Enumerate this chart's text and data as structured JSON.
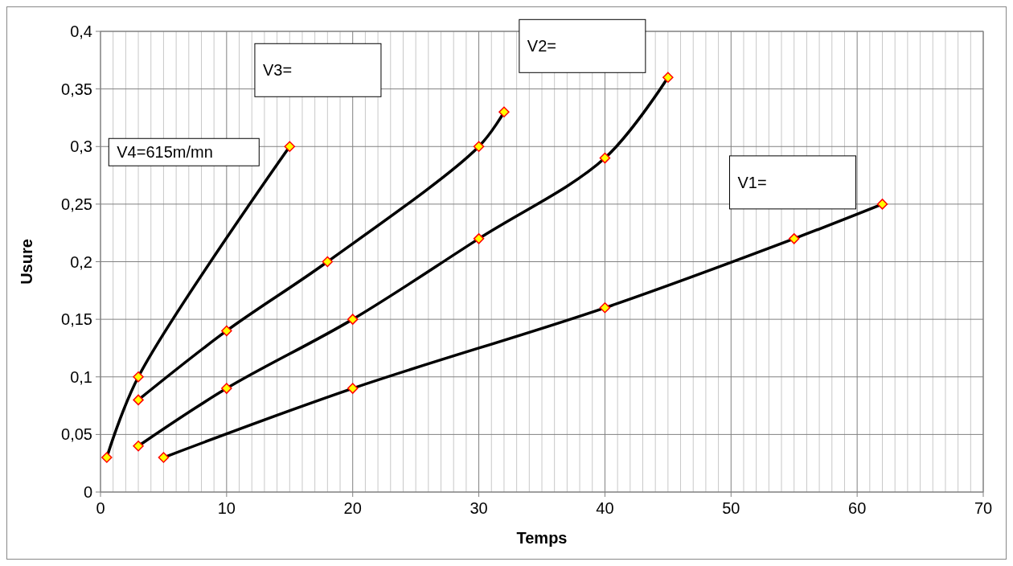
{
  "chart_data": {
    "type": "line",
    "xlabel": "Temps",
    "ylabel": "Usure",
    "xlim": [
      0,
      70
    ],
    "ylim": [
      0,
      0.4
    ],
    "xticks": [
      0,
      {
        "value": 1,
        "label": null
      },
      {
        "value": 2,
        "label": null
      },
      {
        "value": 3,
        "label": null
      },
      {
        "value": 4,
        "label": null
      },
      {
        "value": 5,
        "label": null
      },
      {
        "value": 6,
        "label": null
      },
      {
        "value": 7,
        "label": null
      },
      {
        "value": 8,
        "label": null
      },
      {
        "value": 9,
        "label": null
      },
      10,
      {
        "value": 11,
        "label": null
      },
      {
        "value": 12,
        "label": null
      },
      {
        "value": 13,
        "label": null
      },
      {
        "value": 14,
        "label": null
      },
      {
        "value": 15,
        "label": null
      },
      {
        "value": 16,
        "label": null
      },
      {
        "value": 17,
        "label": null
      },
      {
        "value": 18,
        "label": null
      },
      {
        "value": 19,
        "label": null
      },
      20,
      {
        "value": 21,
        "label": null
      },
      {
        "value": 22,
        "label": null
      },
      {
        "value": 23,
        "label": null
      },
      {
        "value": 24,
        "label": null
      },
      {
        "value": 25,
        "label": null
      },
      {
        "value": 26,
        "label": null
      },
      {
        "value": 27,
        "label": null
      },
      {
        "value": 28,
        "label": null
      },
      {
        "value": 29,
        "label": null
      },
      30,
      {
        "value": 31,
        "label": null
      },
      {
        "value": 32,
        "label": null
      },
      {
        "value": 33,
        "label": null
      },
      {
        "value": 34,
        "label": null
      },
      {
        "value": 35,
        "label": null
      },
      {
        "value": 36,
        "label": null
      },
      {
        "value": 37,
        "label": null
      },
      {
        "value": 38,
        "label": null
      },
      {
        "value": 39,
        "label": null
      },
      40,
      {
        "value": 41,
        "label": null
      },
      {
        "value": 42,
        "label": null
      },
      {
        "value": 43,
        "label": null
      },
      {
        "value": 44,
        "label": null
      },
      {
        "value": 45,
        "label": null
      },
      {
        "value": 46,
        "label": null
      },
      {
        "value": 47,
        "label": null
      },
      {
        "value": 48,
        "label": null
      },
      {
        "value": 49,
        "label": null
      },
      50,
      {
        "value": 51,
        "label": null
      },
      {
        "value": 52,
        "label": null
      },
      {
        "value": 53,
        "label": null
      },
      {
        "value": 54,
        "label": null
      },
      {
        "value": 55,
        "label": null
      },
      {
        "value": 56,
        "label": null
      },
      {
        "value": 57,
        "label": null
      },
      {
        "value": 58,
        "label": null
      },
      {
        "value": 59,
        "label": null
      },
      60,
      {
        "value": 61,
        "label": null
      },
      {
        "value": 62,
        "label": null
      },
      {
        "value": 63,
        "label": null
      },
      {
        "value": 64,
        "label": null
      },
      {
        "value": 65,
        "label": null
      },
      {
        "value": 66,
        "label": null
      },
      {
        "value": 67,
        "label": null
      },
      {
        "value": 68,
        "label": null
      },
      {
        "value": 69,
        "label": null
      },
      70
    ],
    "yticks": [
      0,
      {
        "value": 0.05,
        "label": "0,05"
      },
      {
        "value": 0.1,
        "label": "0,1"
      },
      {
        "value": 0.15,
        "label": "0,15"
      },
      {
        "value": 0.2,
        "label": "0,2"
      },
      {
        "value": 0.25,
        "label": "0,25"
      },
      {
        "value": 0.3,
        "label": "0,3"
      },
      {
        "value": 0.35,
        "label": "0,35"
      },
      {
        "value": 0.4,
        "label": "0,4"
      }
    ],
    "grid": true,
    "marker": "diamond",
    "line_style": "solid",
    "series": [
      {
        "name": "V4=615m/mn",
        "color": "#000000",
        "x": [
          0.5,
          3,
          15
        ],
        "values": [
          0.03,
          0.1,
          0.3
        ]
      },
      {
        "name": "V3=",
        "color": "#000000",
        "x": [
          3,
          10,
          18,
          30,
          32
        ],
        "values": [
          0.08,
          0.14,
          0.2,
          0.3,
          0.33
        ]
      },
      {
        "name": "V2=",
        "color": "#000000",
        "x": [
          3,
          10,
          20,
          30,
          40,
          45
        ],
        "values": [
          0.04,
          0.09,
          0.15,
          0.22,
          0.29,
          0.36
        ]
      },
      {
        "name": "V1=",
        "color": "#000000",
        "x": [
          5,
          20,
          40,
          55,
          62
        ],
        "values": [
          0.03,
          0.09,
          0.16,
          0.22,
          0.25
        ]
      }
    ]
  }
}
